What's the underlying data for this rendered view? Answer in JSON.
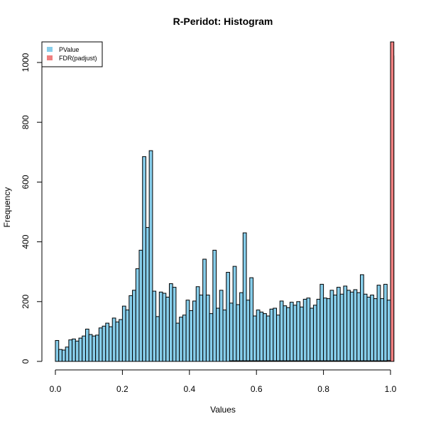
{
  "chart_data": {
    "type": "bar",
    "title": "R-Peridot: Histogram",
    "xlabel": "Values",
    "ylabel": "Frequency",
    "xlim": [
      0,
      1
    ],
    "ylim": [
      0,
      1050
    ],
    "xticks": [
      "0.0",
      "0.2",
      "0.4",
      "0.6",
      "0.8",
      "1.0"
    ],
    "yticks": [
      "0",
      "200",
      "400",
      "600",
      "800",
      "1000"
    ],
    "grid": false,
    "legend_position": "top-left",
    "bin_width": 0.01,
    "series": [
      {
        "name": "PValue",
        "color": "#87CEEB",
        "values": [
          70,
          40,
          38,
          48,
          72,
          75,
          68,
          78,
          85,
          108,
          90,
          85,
          88,
          112,
          118,
          128,
          116,
          145,
          132,
          140,
          185,
          172,
          220,
          238,
          310,
          372,
          685,
          448,
          705,
          235,
          150,
          232,
          228,
          215,
          260,
          248,
          128,
          148,
          155,
          205,
          170,
          202,
          250,
          222,
          342,
          222,
          160,
          372,
          178,
          238,
          172,
          298,
          195,
          318,
          190,
          230,
          430,
          205,
          280,
          152,
          172,
          165,
          160,
          152,
          175,
          178,
          155,
          202,
          186,
          180,
          198,
          188,
          200,
          182,
          208,
          212,
          178,
          188,
          208,
          258,
          212,
          210,
          238,
          222,
          248,
          225,
          252,
          238,
          232,
          240,
          230,
          290,
          225,
          215,
          222,
          210,
          255,
          210,
          258,
          205,
          1022
        ]
      },
      {
        "name": "FDR(padjust)",
        "color": "#F08080",
        "values": [
          0,
          0,
          0,
          0,
          0,
          0,
          0,
          0,
          0,
          0,
          0,
          0,
          0,
          0,
          0,
          0,
          0,
          0,
          0,
          0,
          0,
          0,
          0,
          0,
          0,
          0,
          0,
          0,
          0,
          0,
          0,
          0,
          0,
          0,
          0,
          0,
          0,
          0,
          0,
          0,
          0,
          0,
          0,
          0,
          0,
          0,
          0,
          0,
          0,
          0,
          0,
          0,
          2,
          2,
          2,
          2,
          2,
          2,
          2,
          2,
          2,
          2,
          2,
          2,
          2,
          2,
          2,
          2,
          2,
          2,
          2,
          2,
          2,
          2,
          2,
          2,
          2,
          2,
          2,
          2,
          2,
          2,
          2,
          2,
          2,
          2,
          2,
          2,
          2,
          2,
          2,
          2,
          2,
          2,
          2,
          2,
          2,
          2,
          2,
          3,
          1070
        ]
      }
    ]
  }
}
